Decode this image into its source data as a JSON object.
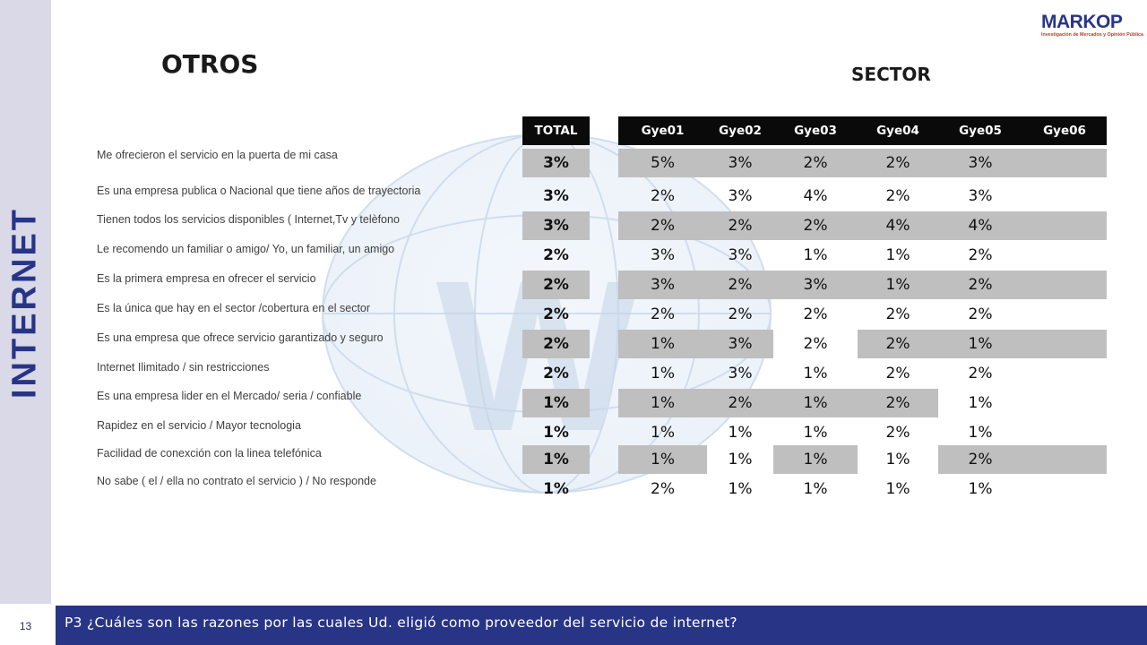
{
  "side_label": "INTERNET",
  "page_number": "13",
  "question": "P3 ¿Cuáles son las razones por las cuales Ud. eligió como proveedor del servicio de internet?",
  "title": "OTROS",
  "section_title": "SECTOR",
  "logo": {
    "name": "MARKOP",
    "tagline": "Investigación de Mercados y Opinión Pública"
  },
  "table": {
    "headers": [
      "TOTAL",
      "Gye01",
      "Gye02",
      "Gye03",
      "Gye04",
      "Gye05",
      "Gye06"
    ],
    "rows": [
      {
        "label": "Me ofrecieron el servicio en la puerta de mi casa",
        "values": [
          "3%",
          "5%",
          "3%",
          "2%",
          "2%",
          "3%",
          ""
        ],
        "shaded": [
          true,
          true,
          true,
          true,
          true,
          true,
          true
        ]
      },
      {
        "label": "Es una empresa publica o Nacional  que tiene años de trayectoria",
        "values": [
          "3%",
          "2%",
          "3%",
          "4%",
          "2%",
          "3%",
          ""
        ],
        "shaded": [
          false,
          false,
          false,
          false,
          false,
          false,
          false
        ]
      },
      {
        "label": "Tienen todos los servicios disponibles  ( Internet,Tv y telèfono",
        "values": [
          "3%",
          "2%",
          "2%",
          "2%",
          "4%",
          "4%",
          ""
        ],
        "shaded": [
          true,
          true,
          true,
          true,
          true,
          true,
          true
        ]
      },
      {
        "label": "Le recomendo un familiar o amigo/ Yo, un familiar, un amigo",
        "values": [
          "2%",
          "3%",
          "3%",
          "1%",
          "1%",
          "2%",
          ""
        ],
        "shaded": [
          false,
          false,
          false,
          false,
          false,
          false,
          false
        ]
      },
      {
        "label": "Es la primera empresa en ofrecer el servicio",
        "values": [
          "2%",
          "3%",
          "2%",
          "3%",
          "1%",
          "2%",
          ""
        ],
        "shaded": [
          true,
          true,
          true,
          true,
          true,
          true,
          true
        ]
      },
      {
        "label": "Es la única que hay en el sector /cobertura en el sector",
        "values": [
          "2%",
          "2%",
          "2%",
          "2%",
          "2%",
          "2%",
          ""
        ],
        "shaded": [
          false,
          false,
          false,
          false,
          false,
          false,
          false
        ]
      },
      {
        "label": "Es una empresa que ofrece servicio garantizado  y seguro",
        "values": [
          "2%",
          "1%",
          "3%",
          "2%",
          "2%",
          "1%",
          ""
        ],
        "shaded": [
          true,
          true,
          true,
          false,
          true,
          true,
          true
        ]
      },
      {
        "label": "Internet Ilimitado / sin restricciones",
        "values": [
          "2%",
          "1%",
          "3%",
          "1%",
          "2%",
          "2%",
          ""
        ],
        "shaded": [
          false,
          false,
          false,
          false,
          false,
          false,
          false
        ]
      },
      {
        "label": "Es una empresa  lider en el Mercado/ seria / confiable",
        "values": [
          "1%",
          "1%",
          "2%",
          "1%",
          "2%",
          "1%",
          ""
        ],
        "shaded": [
          true,
          true,
          true,
          true,
          true,
          false,
          false
        ]
      },
      {
        "label": "Rapidez en el servicio / Mayor tecnologia",
        "values": [
          "1%",
          "1%",
          "1%",
          "1%",
          "2%",
          "1%",
          ""
        ],
        "shaded": [
          false,
          false,
          false,
          false,
          false,
          false,
          false
        ]
      },
      {
        "label": "Facilidad de conexción con la linea telefónica",
        "values": [
          "1%",
          "1%",
          "1%",
          "1%",
          "1%",
          "2%",
          ""
        ],
        "shaded": [
          true,
          true,
          false,
          true,
          false,
          true,
          true
        ]
      },
      {
        "label": "No sabe ( el / ella no contrato el servicio  ) / No responde",
        "values": [
          "1%",
          "2%",
          "1%",
          "1%",
          "1%",
          "1%",
          ""
        ],
        "shaded": [
          false,
          false,
          false,
          false,
          false,
          false,
          false
        ]
      }
    ]
  },
  "colors": {
    "brand_navy": "#283587",
    "header_bg": "#0a0a0a",
    "shade": "#bfbfbf",
    "side_band": "#d9d9e8"
  }
}
